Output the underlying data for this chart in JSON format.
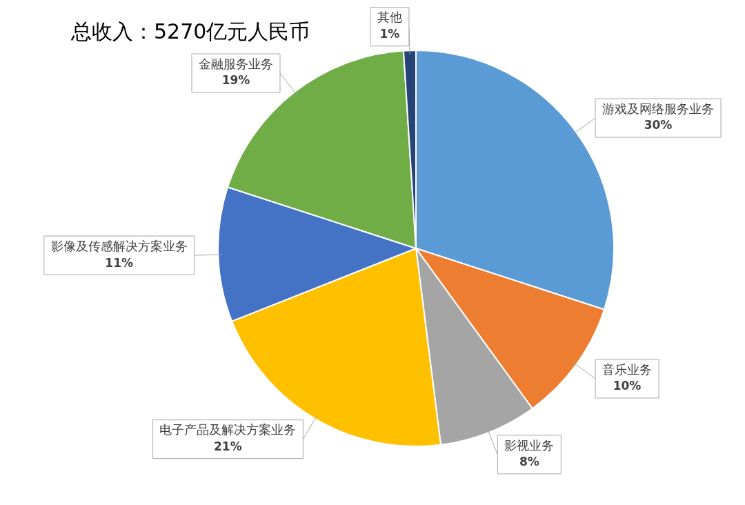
{
  "chart_data": {
    "type": "pie",
    "title": "总收入：5270亿元人民币",
    "categories": [
      "游戏及网络服务业务",
      "音乐业务",
      "影视业务",
      "电子产品及解决方案业务",
      "影像及传感解决方案业务",
      "金融服务业务",
      "其他"
    ],
    "values": [
      30,
      10,
      8,
      21,
      11,
      19,
      1
    ],
    "value_labels": [
      "30%",
      "10%",
      "8%",
      "21%",
      "11%",
      "19%",
      "1%"
    ],
    "colors": [
      "#5b9bd5",
      "#ed7d31",
      "#a5a5a5",
      "#ffc000",
      "#4472c4",
      "#70ad47",
      "#264478"
    ],
    "legend": false
  }
}
